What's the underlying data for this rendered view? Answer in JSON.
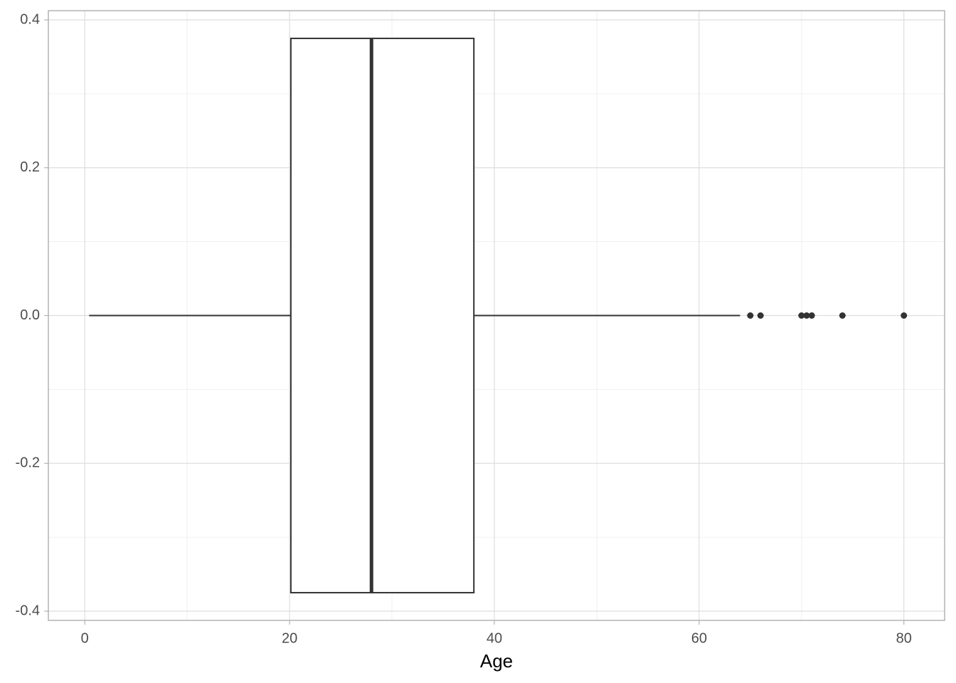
{
  "chart_data": {
    "type": "boxplot",
    "x_label": "Age",
    "boxes": [
      {
        "y": 0,
        "width": 0.75,
        "whisker_low": 0.42,
        "q1": 20.125,
        "median": 28,
        "q3": 38,
        "whisker_high": 64,
        "outliers": [
          65,
          66,
          70,
          70.5,
          71,
          74,
          80
        ]
      }
    ],
    "xlim": [
      -3.559,
      83.979
    ],
    "xticks": [
      0,
      20,
      40,
      60,
      80
    ],
    "ylim": [
      -0.4125,
      0.4125
    ],
    "yticks": [
      -0.4,
      -0.2,
      {
        "value": 0,
        "label": "0.0"
      },
      0.2,
      0.4
    ],
    "grid": true,
    "color": "#333333"
  }
}
